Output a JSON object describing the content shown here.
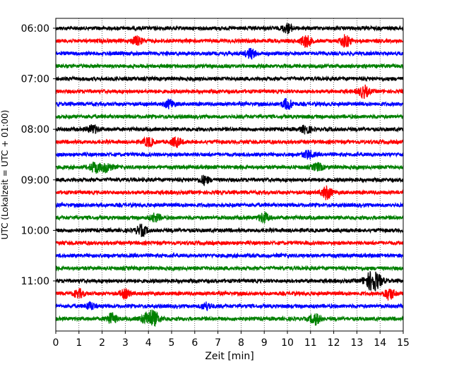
{
  "chart_data": {
    "type": "line",
    "xlabel": "Zeit  [min]",
    "ylabel": "UTC (Lokalzeit = UTC + 01:00)",
    "xlim": [
      0,
      15
    ],
    "x_ticks": [
      "0",
      "1",
      "2",
      "3",
      "4",
      "5",
      "6",
      "7",
      "8",
      "9",
      "10",
      "11",
      "12",
      "13",
      "14",
      "15"
    ],
    "y_ticks": [
      "06:00",
      "07:00",
      "08:00",
      "09:00",
      "10:00",
      "11:00"
    ],
    "grid": "vertical dotted lines at each minute",
    "colors": [
      "#000000",
      "#ff0000",
      "#0000ff",
      "#008000"
    ],
    "traces": [
      {
        "start": "06:00",
        "color": "#000000",
        "events": [
          {
            "minute": 10.0,
            "amp": 1.6
          }
        ]
      },
      {
        "start": "06:15",
        "color": "#ff0000",
        "events": [
          {
            "minute": 3.5,
            "amp": 1.5
          },
          {
            "minute": 10.8,
            "amp": 2.2
          },
          {
            "minute": 12.5,
            "amp": 2.2
          }
        ]
      },
      {
        "start": "06:30",
        "color": "#0000ff",
        "events": [
          {
            "minute": 8.4,
            "amp": 1.8
          }
        ]
      },
      {
        "start": "06:45",
        "color": "#008000",
        "events": []
      },
      {
        "start": "07:00",
        "color": "#000000",
        "events": []
      },
      {
        "start": "07:15",
        "color": "#ff0000",
        "events": [
          {
            "minute": 13.3,
            "amp": 2.2
          }
        ]
      },
      {
        "start": "07:30",
        "color": "#0000ff",
        "events": [
          {
            "minute": 4.9,
            "amp": 1.5
          },
          {
            "minute": 10.0,
            "amp": 2.0
          }
        ]
      },
      {
        "start": "07:45",
        "color": "#008000",
        "events": []
      },
      {
        "start": "08:00",
        "color": "#000000",
        "events": [
          {
            "minute": 1.6,
            "amp": 1.5
          },
          {
            "minute": 10.8,
            "amp": 1.4
          }
        ]
      },
      {
        "start": "08:15",
        "color": "#ff0000",
        "events": [
          {
            "minute": 4.0,
            "amp": 1.6
          },
          {
            "minute": 5.2,
            "amp": 1.7
          }
        ]
      },
      {
        "start": "08:30",
        "color": "#0000ff",
        "events": [
          {
            "minute": 10.9,
            "amp": 1.5
          }
        ]
      },
      {
        "start": "08:45",
        "color": "#008000",
        "events": [
          {
            "minute": 1.7,
            "amp": 2.0
          },
          {
            "minute": 2.2,
            "amp": 1.8
          },
          {
            "minute": 11.3,
            "amp": 1.4
          }
        ]
      },
      {
        "start": "09:00",
        "color": "#000000",
        "events": [
          {
            "minute": 6.4,
            "amp": 1.5
          }
        ]
      },
      {
        "start": "09:15",
        "color": "#ff0000",
        "events": [
          {
            "minute": 11.7,
            "amp": 2.4
          }
        ]
      },
      {
        "start": "09:30",
        "color": "#0000ff",
        "events": []
      },
      {
        "start": "09:45",
        "color": "#008000",
        "events": [
          {
            "minute": 4.3,
            "amp": 1.4
          },
          {
            "minute": 9.0,
            "amp": 1.8
          }
        ]
      },
      {
        "start": "10:00",
        "color": "#000000",
        "events": [
          {
            "minute": 3.7,
            "amp": 2.0
          }
        ]
      },
      {
        "start": "10:15",
        "color": "#ff0000",
        "events": []
      },
      {
        "start": "10:30",
        "color": "#0000ff",
        "events": []
      },
      {
        "start": "10:45",
        "color": "#008000",
        "events": []
      },
      {
        "start": "11:00",
        "color": "#000000",
        "events": [
          {
            "minute": 13.7,
            "amp": 3.8
          }
        ]
      },
      {
        "start": "11:15",
        "color": "#ff0000",
        "events": [
          {
            "minute": 1.0,
            "amp": 1.5
          },
          {
            "minute": 3.0,
            "amp": 1.5
          },
          {
            "minute": 14.4,
            "amp": 2.2
          }
        ]
      },
      {
        "start": "11:30",
        "color": "#0000ff",
        "events": [
          {
            "minute": 1.5,
            "amp": 1.3
          },
          {
            "minute": 6.5,
            "amp": 1.3
          }
        ]
      },
      {
        "start": "11:45",
        "color": "#008000",
        "events": [
          {
            "minute": 2.4,
            "amp": 2.0
          },
          {
            "minute": 4.1,
            "amp": 3.2
          },
          {
            "minute": 11.2,
            "amp": 2.0
          }
        ]
      }
    ]
  }
}
